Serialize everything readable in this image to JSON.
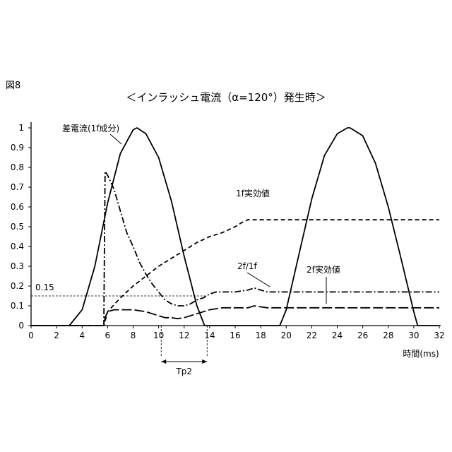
{
  "figure_label": "図8",
  "chart_data": {
    "type": "line",
    "title": "＜インラッシュ電流（α=120°）発生時＞",
    "xlabel": "時間(ms)",
    "ylabel": "",
    "xlim": [
      0,
      32
    ],
    "ylim": [
      0,
      1
    ],
    "x_ticks": [
      "0",
      "2",
      "4",
      "6",
      "8",
      "10",
      "12",
      "14",
      "16",
      "18",
      "20",
      "22",
      "24",
      "26",
      "28",
      "30",
      "32"
    ],
    "y_ticks": [
      "0",
      "0.1",
      "0.2",
      "0.3",
      "0.4",
      "0.5",
      "0.6",
      "0.7",
      "0.8",
      "0.9",
      "1"
    ],
    "grid": false,
    "threshold": {
      "label": "0.15",
      "value": 0.15
    },
    "interval": {
      "label": "Tp2",
      "start": 10.2,
      "end": 13.8
    },
    "series": [
      {
        "name": "差電流(1f成分)",
        "style": "solid",
        "x": [
          0,
          2,
          3,
          4,
          5,
          6,
          7,
          8,
          8.3,
          9,
          10,
          11,
          12,
          13,
          13.6,
          14,
          15,
          16,
          17,
          18,
          19,
          19.5,
          20,
          21,
          22,
          23,
          24,
          24.8,
          25,
          26,
          27,
          28,
          29,
          30,
          30.3,
          31,
          32
        ],
        "y": [
          0,
          0,
          0,
          0.08,
          0.3,
          0.62,
          0.87,
          0.99,
          1.0,
          0.97,
          0.85,
          0.63,
          0.35,
          0.1,
          0,
          0,
          0,
          0,
          0,
          0,
          0,
          0,
          0.08,
          0.36,
          0.64,
          0.86,
          0.97,
          1.0,
          1.0,
          0.96,
          0.82,
          0.6,
          0.34,
          0.07,
          0,
          0,
          0
        ]
      },
      {
        "name": "2f/1f",
        "style": "dashdot",
        "x": [
          0,
          5.7,
          5.8,
          6,
          6.5,
          7,
          7.5,
          8,
          8.5,
          9,
          9.5,
          10,
          10.5,
          11,
          11.5,
          12,
          12.5,
          13,
          13.5,
          14,
          14.5,
          15,
          16,
          17,
          17.5,
          18,
          18.5,
          19,
          20,
          22,
          24,
          26,
          28,
          30,
          32
        ],
        "y": [
          0,
          0,
          0.78,
          0.76,
          0.69,
          0.58,
          0.47,
          0.4,
          0.32,
          0.26,
          0.21,
          0.17,
          0.13,
          0.11,
          0.1,
          0.1,
          0.11,
          0.13,
          0.14,
          0.16,
          0.17,
          0.17,
          0.17,
          0.18,
          0.19,
          0.18,
          0.17,
          0.17,
          0.17,
          0.17,
          0.17,
          0.17,
          0.17,
          0.17,
          0.17
        ]
      },
      {
        "name": "2f実効値",
        "style": "longdash",
        "x": [
          0,
          5.7,
          5.8,
          6,
          6.5,
          7,
          8,
          9,
          10,
          10.5,
          11,
          11.5,
          12,
          13,
          14,
          15,
          16,
          17,
          17.5,
          18,
          18.5,
          19,
          20,
          22,
          24,
          26,
          28,
          30,
          32
        ],
        "y": [
          0,
          0,
          0.04,
          0.07,
          0.08,
          0.08,
          0.08,
          0.07,
          0.05,
          0.04,
          0.04,
          0.035,
          0.04,
          0.06,
          0.08,
          0.09,
          0.09,
          0.09,
          0.1,
          0.095,
          0.09,
          0.09,
          0.09,
          0.09,
          0.09,
          0.09,
          0.09,
          0.09,
          0.09
        ]
      },
      {
        "name": "1f実効値",
        "style": "dashed",
        "x": [
          0,
          5.7,
          6,
          7,
          8,
          9,
          10,
          11,
          12,
          13,
          14,
          15,
          16,
          16.5,
          17,
          18,
          20,
          22,
          24,
          26,
          28,
          30,
          32
        ],
        "y": [
          0,
          0,
          0.07,
          0.14,
          0.2,
          0.25,
          0.3,
          0.34,
          0.38,
          0.42,
          0.45,
          0.47,
          0.5,
          0.52,
          0.535,
          0.535,
          0.535,
          0.535,
          0.535,
          0.535,
          0.535,
          0.535,
          0.535
        ]
      }
    ]
  }
}
